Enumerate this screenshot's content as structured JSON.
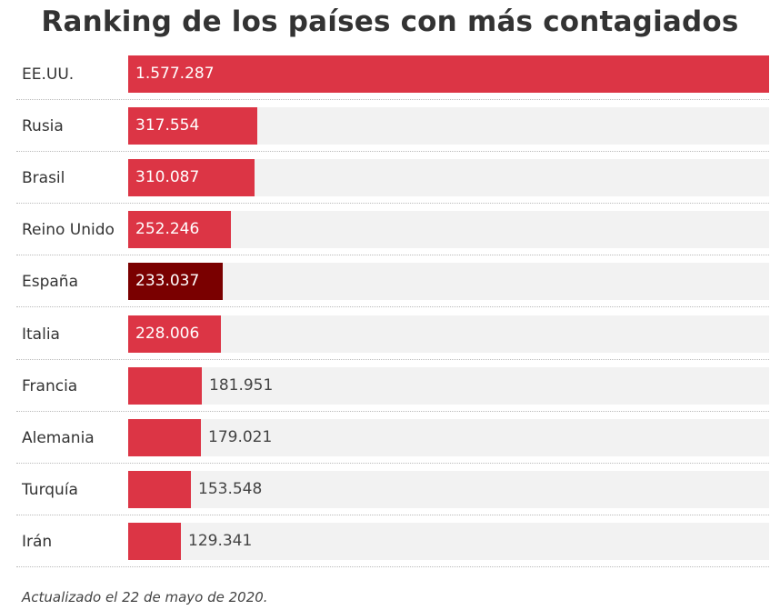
{
  "chart_data": {
    "type": "bar",
    "orientation": "horizontal",
    "title": "Ranking de los países con más contagiados",
    "categories": [
      "EE.UU.",
      "Rusia",
      "Brasil",
      "Reino Unido",
      "España",
      "Italia",
      "Francia",
      "Alemania",
      "Turquía",
      "Irán"
    ],
    "values": [
      1577287,
      317554,
      310087,
      252246,
      233037,
      228006,
      181951,
      179021,
      153548,
      129341
    ],
    "value_labels": [
      "1.577.287",
      "317.554",
      "310.087",
      "252.246",
      "233.037",
      "228.006",
      "181.951",
      "179.021",
      "153.548",
      "129.341"
    ],
    "xlim": [
      0,
      1577287
    ],
    "highlight_category": "España",
    "colors": {
      "bar": "#dc3545",
      "highlight": "#7a0000",
      "track": "#f2f2f2"
    },
    "footnote": "Actualizado el 22 de mayo de 2020."
  }
}
